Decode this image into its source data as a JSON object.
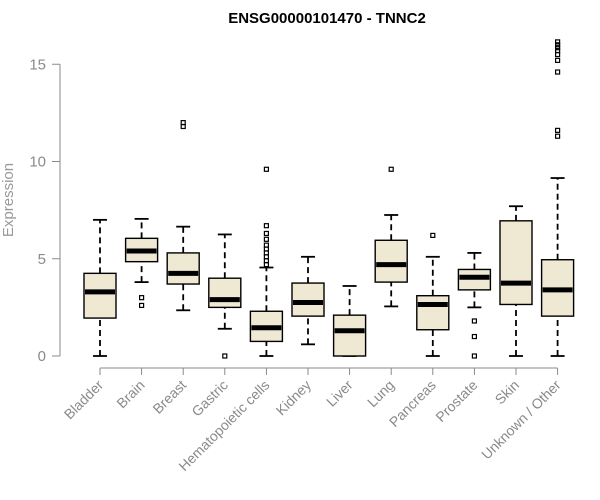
{
  "chart_data": {
    "type": "boxplot",
    "title": "ENSG00000101470 - TNNC2",
    "ylabel": "Expression",
    "xlabel": "",
    "ylim": [
      0,
      15.8
    ],
    "yticks": [
      0,
      5,
      10,
      15
    ],
    "categories": [
      "Bladder",
      "Brain",
      "Breast",
      "Gastric",
      "Hematopoietic cells",
      "Kidney",
      "Liver",
      "Lung",
      "Pancreas",
      "Prostate",
      "Skin",
      "Unknown / Other"
    ],
    "series": [
      {
        "category": "Bladder",
        "min": 0,
        "q1": 1.95,
        "median": 3.3,
        "q3": 4.25,
        "max": 7.0,
        "outliers": []
      },
      {
        "category": "Brain",
        "min": 3.8,
        "q1": 4.85,
        "median": 5.4,
        "q3": 6.05,
        "max": 7.05,
        "outliers": [
          2.6,
          3.0
        ]
      },
      {
        "category": "Breast",
        "min": 2.35,
        "q1": 3.7,
        "median": 4.25,
        "q3": 5.3,
        "max": 6.65,
        "outliers": [
          11.8,
          12.0
        ]
      },
      {
        "category": "Gastric",
        "min": 1.4,
        "q1": 2.5,
        "median": 2.9,
        "q3": 4.0,
        "max": 6.25,
        "outliers": [
          0
        ]
      },
      {
        "category": "Hematopoietic cells",
        "min": 0,
        "q1": 0.75,
        "median": 1.45,
        "q3": 2.3,
        "max": 4.55,
        "outliers": [
          4.7,
          4.9,
          5.1,
          5.3,
          5.5,
          5.7,
          6.0,
          6.3,
          6.7,
          9.6
        ]
      },
      {
        "category": "Kidney",
        "min": 0.6,
        "q1": 2.05,
        "median": 2.75,
        "q3": 3.75,
        "max": 5.1,
        "outliers": []
      },
      {
        "category": "Liver",
        "min": 0,
        "q1": 0,
        "median": 1.3,
        "q3": 2.1,
        "max": 3.6,
        "outliers": []
      },
      {
        "category": "Lung",
        "min": 2.55,
        "q1": 3.8,
        "median": 4.7,
        "q3": 5.95,
        "max": 7.25,
        "outliers": [
          9.6
        ]
      },
      {
        "category": "Pancreas",
        "min": 0,
        "q1": 1.35,
        "median": 2.65,
        "q3": 3.1,
        "max": 5.1,
        "outliers": [
          6.2
        ]
      },
      {
        "category": "Prostate",
        "min": 2.5,
        "q1": 3.4,
        "median": 4.05,
        "q3": 4.45,
        "max": 5.3,
        "outliers": [
          0,
          1.0,
          1.8
        ]
      },
      {
        "category": "Skin",
        "min": 0,
        "q1": 2.65,
        "median": 3.75,
        "q3": 6.95,
        "max": 7.7,
        "outliers": []
      },
      {
        "category": "Unknown / Other",
        "min": 0,
        "q1": 2.05,
        "median": 3.4,
        "q3": 4.95,
        "max": 9.15,
        "outliers": [
          11.3,
          11.6,
          14.6,
          15.2,
          15.5,
          15.7,
          15.85,
          16.0,
          16.15
        ]
      }
    ],
    "colors": {
      "box_fill": "#efe8d3",
      "stroke": "#000000",
      "axis": "#8a8a8a"
    },
    "grid": false,
    "legend": "none"
  }
}
